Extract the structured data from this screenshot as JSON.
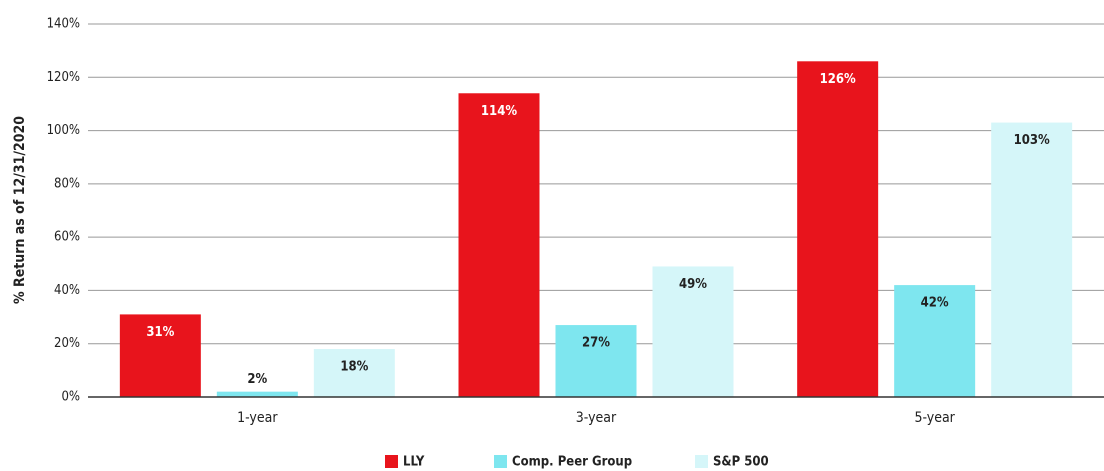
{
  "chart_data": {
    "type": "bar",
    "y_label": "% Return as of 12/31/2020",
    "categories": [
      "1-year",
      "3-year",
      "5-year"
    ],
    "series": [
      {
        "name": "LLY",
        "color": "#e8141c",
        "values": [
          31,
          114,
          126
        ],
        "value_labels": [
          "31%",
          "114%",
          "126%"
        ]
      },
      {
        "name": "Comp. Peer Group",
        "color": "#7ee6ef",
        "values": [
          2,
          27,
          42
        ],
        "value_labels": [
          "2%",
          "27%",
          "42%"
        ]
      },
      {
        "name": "S&P 500",
        "color": "#d5f6f9",
        "values": [
          18,
          49,
          103
        ],
        "value_labels": [
          "18%",
          "49%",
          "103%"
        ]
      }
    ],
    "ylim": [
      0,
      140
    ],
    "yticks": [
      {
        "value": 0,
        "label": "0%"
      },
      {
        "value": 20,
        "label": "20%"
      },
      {
        "value": 40,
        "label": "40%"
      },
      {
        "value": 60,
        "label": "60%"
      },
      {
        "value": 80,
        "label": "80%"
      },
      {
        "value": 100,
        "label": "100%"
      },
      {
        "value": 120,
        "label": "120%"
      },
      {
        "value": 140,
        "label": "140%"
      }
    ],
    "grid": true,
    "legend": "bottom"
  }
}
